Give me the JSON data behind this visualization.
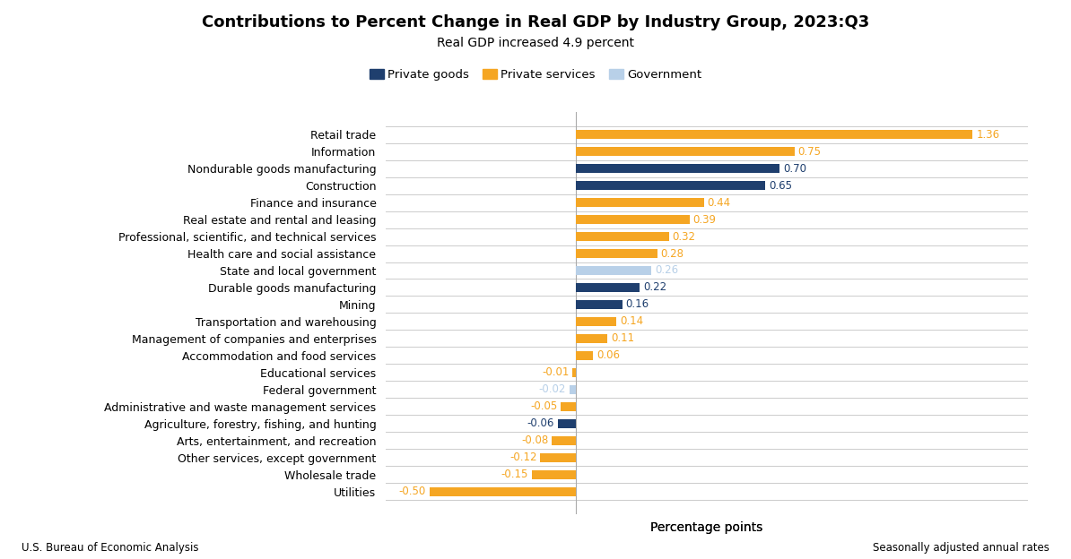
{
  "title": "Contributions to Percent Change in Real GDP by Industry Group, 2023:Q3",
  "subtitle": "Real GDP increased 4.9 percent",
  "xlabel": "Percentage points",
  "footer_left": "U.S. Bureau of Economic Analysis",
  "footer_right": "Seasonally adjusted annual rates",
  "legend": [
    "Private goods",
    "Private services",
    "Government"
  ],
  "legend_colors": [
    "#1f3f6e",
    "#f5a623",
    "#b8d0e8"
  ],
  "categories": [
    "Retail trade",
    "Information",
    "Nondurable goods manufacturing",
    "Construction",
    "Finance and insurance",
    "Real estate and rental and leasing",
    "Professional, scientific, and technical services",
    "Health care and social assistance",
    "State and local government",
    "Durable goods manufacturing",
    "Mining",
    "Transportation and warehousing",
    "Management of companies and enterprises",
    "Accommodation and food services",
    "Educational services",
    "Federal government",
    "Administrative and waste management services",
    "Agriculture, forestry, fishing, and hunting",
    "Arts, entertainment, and recreation",
    "Other services, except government",
    "Wholesale trade",
    "Utilities"
  ],
  "values": [
    1.36,
    0.75,
    0.7,
    0.65,
    0.44,
    0.39,
    0.32,
    0.28,
    0.26,
    0.22,
    0.16,
    0.14,
    0.11,
    0.06,
    -0.01,
    -0.02,
    -0.05,
    -0.06,
    -0.08,
    -0.12,
    -0.15,
    -0.5
  ],
  "colors": [
    "#f5a623",
    "#f5a623",
    "#1f3f6e",
    "#1f3f6e",
    "#f5a623",
    "#f5a623",
    "#f5a623",
    "#f5a623",
    "#b8d0e8",
    "#1f3f6e",
    "#1f3f6e",
    "#f5a623",
    "#f5a623",
    "#f5a623",
    "#f5a623",
    "#b8d0e8",
    "#f5a623",
    "#1f3f6e",
    "#f5a623",
    "#f5a623",
    "#f5a623",
    "#f5a623"
  ],
  "value_colors": [
    "#f5a623",
    "#f5a623",
    "#1f3f6e",
    "#1f3f6e",
    "#f5a623",
    "#f5a623",
    "#f5a623",
    "#f5a623",
    "#b8d0e8",
    "#1f3f6e",
    "#1f3f6e",
    "#f5a623",
    "#f5a623",
    "#f5a623",
    "#f5a623",
    "#b8d0e8",
    "#f5a623",
    "#1f3f6e",
    "#f5a623",
    "#f5a623",
    "#f5a623",
    "#f5a623"
  ],
  "xlim": [
    -0.65,
    1.55
  ],
  "bar_height": 0.52,
  "background_color": "#ffffff",
  "grid_color": "#cccccc",
  "zero_line_x": 0.0
}
